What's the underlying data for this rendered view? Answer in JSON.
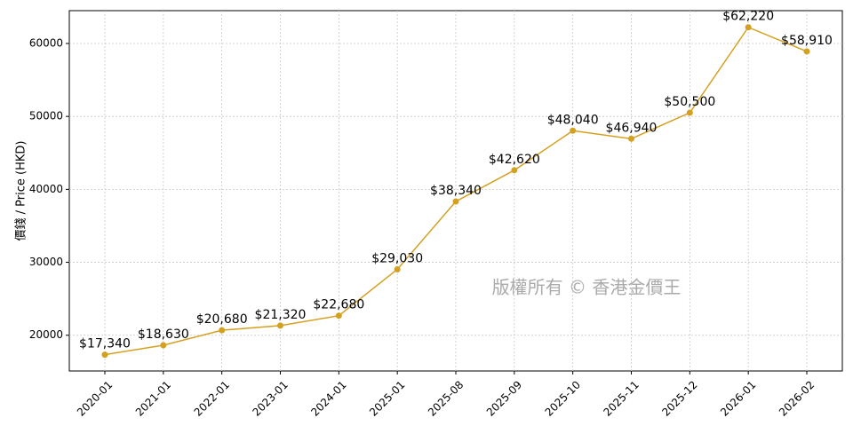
{
  "chart_data": {
    "type": "line",
    "y_label": "價錢 / Price (HKD)",
    "watermark": "版權所有 © 香港金價王",
    "categories": [
      "2020-01",
      "2021-01",
      "2022-01",
      "2023-01",
      "2024-01",
      "2025-01",
      "2025-08",
      "2025-09",
      "2025-10",
      "2025-11",
      "2025-12",
      "2026-01",
      "2026-02"
    ],
    "values": [
      17340,
      18630,
      20680,
      21320,
      22680,
      29030,
      38340,
      42620,
      48040,
      46940,
      50500,
      62220,
      58910
    ],
    "value_labels": [
      "$17,340",
      "$18,630",
      "$20,680",
      "$21,320",
      "$22,680",
      "$29,030",
      "$38,340",
      "$42,620",
      "$48,040",
      "$46,940",
      "$50,500",
      "$62,220",
      "$58,910"
    ],
    "color": "#d4a020",
    "ylim": [
      15100,
      64500
    ],
    "yticks": [
      20000,
      30000,
      40000,
      50000,
      60000
    ],
    "grid": true
  }
}
